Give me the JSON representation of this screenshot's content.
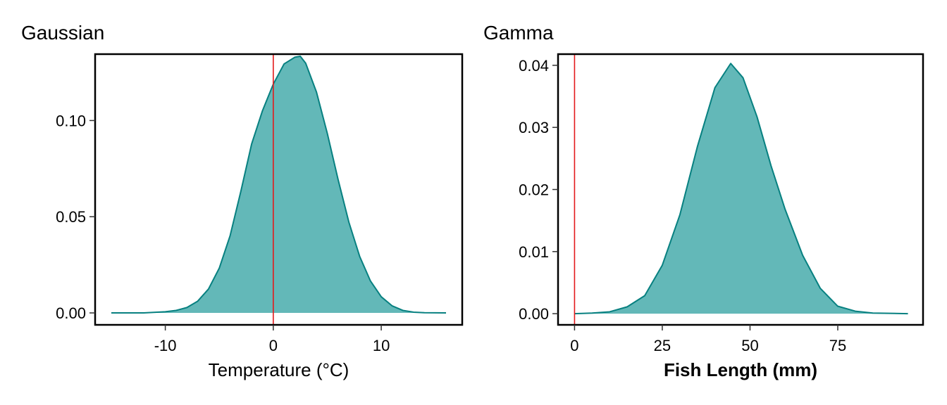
{
  "chart_data": [
    {
      "type": "area",
      "title": "Gaussian",
      "xlabel": "Temperature (°C)",
      "ylabel": "",
      "xlim": [
        -16.5,
        17.5
      ],
      "ylim": [
        -0.0062,
        0.1345
      ],
      "xticks": [
        -10,
        0,
        10
      ],
      "xtick_labels": [
        "-10",
        "0",
        "10"
      ],
      "yticks": [
        0.0,
        0.05,
        0.1
      ],
      "ytick_labels": [
        "0.00",
        "0.05",
        "0.10"
      ],
      "vline_x": 0,
      "fill_color": "#63b8b8",
      "line_color": "#078080",
      "vline_color": "#e31a1c",
      "x": [
        -15,
        -12,
        -10,
        -9,
        -8,
        -7,
        -6,
        -5,
        -4,
        -3,
        -2,
        -1,
        0,
        1,
        2,
        2.5,
        3,
        4,
        5,
        6,
        7,
        8,
        9,
        10,
        11,
        12,
        13,
        14,
        16
      ],
      "y": [
        0.0,
        0.0,
        0.0006,
        0.0013,
        0.0028,
        0.0061,
        0.0124,
        0.0233,
        0.0401,
        0.0633,
        0.0879,
        0.1051,
        0.1189,
        0.1294,
        0.1329,
        0.1334,
        0.1298,
        0.1148,
        0.0934,
        0.0694,
        0.0472,
        0.0294,
        0.0166,
        0.0084,
        0.0037,
        0.0013,
        0.0004,
        0.0001,
        0.0
      ]
    },
    {
      "type": "area",
      "title": "Gamma",
      "xlabel": "Fish Length (mm)",
      "ylabel": "",
      "xlim": [
        -4.7,
        99.3
      ],
      "ylim": [
        -0.0018,
        0.0418
      ],
      "xticks": [
        0,
        25,
        50,
        75
      ],
      "xtick_labels": [
        "0",
        "25",
        "50",
        "75"
      ],
      "yticks": [
        0.0,
        0.01,
        0.02,
        0.03,
        0.04
      ],
      "ytick_labels": [
        "0.00",
        "0.01",
        "0.02",
        "0.03",
        "0.04"
      ],
      "vline_x": 0,
      "fill_color": "#63b8b8",
      "line_color": "#078080",
      "vline_color": "#e31a1c",
      "x": [
        0,
        5,
        10,
        15,
        20,
        25,
        30,
        35,
        40,
        44.5,
        48,
        52,
        56,
        60,
        65,
        70,
        75,
        80,
        85,
        95
      ],
      "y": [
        0.0,
        0.0001,
        0.0003,
        0.0011,
        0.0029,
        0.0078,
        0.0159,
        0.0269,
        0.0364,
        0.0403,
        0.038,
        0.0317,
        0.0238,
        0.0168,
        0.0094,
        0.0041,
        0.0012,
        0.0004,
        0.0001,
        0.0
      ]
    }
  ]
}
